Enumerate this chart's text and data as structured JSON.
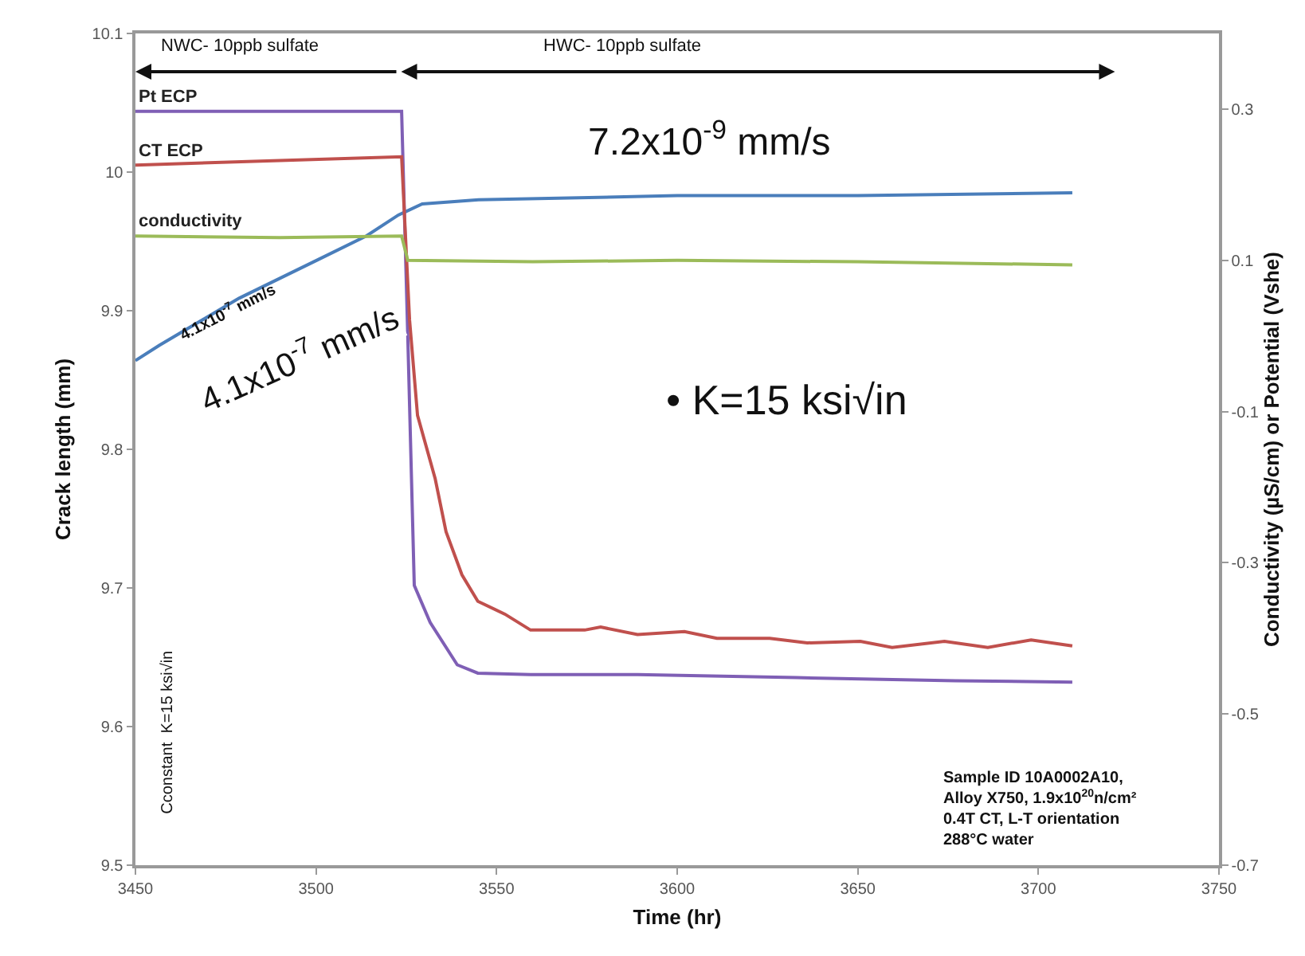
{
  "chart_data": {
    "type": "line",
    "xlabel": "Time (hr)",
    "ylabel": "Crack length (mm)",
    "y2label": "Conductivity (µS/cm) or Potential (Vshe)",
    "xlim": [
      3450,
      3750
    ],
    "xticks": [
      3450,
      3500,
      3550,
      3600,
      3650,
      3700,
      3750
    ],
    "ylim": [
      9.5,
      10.1
    ],
    "yticks": [
      9.5,
      9.6,
      9.7,
      9.8,
      9.9,
      10,
      10.1
    ],
    "y2lim": [
      -0.7,
      0.4
    ],
    "y2ticks": [
      -0.7,
      -0.5,
      -0.3,
      -0.1,
      0.1,
      0.3
    ],
    "legend": false,
    "marker": "none",
    "line_style": "solid",
    "series": [
      {
        "name": "Pt ECP",
        "color": "#7f5fb5",
        "axis": "y2",
        "x": [
          3450,
          3490,
          3523.7,
          3525.4,
          3527.2,
          3531.6,
          3539.1,
          3544.8,
          3559.4,
          3589,
          3633,
          3677,
          3709.4
        ],
        "values": [
          0.297,
          0.297,
          0.297,
          0.0,
          -0.33,
          -0.379,
          -0.435,
          -0.446,
          -0.448,
          -0.448,
          -0.452,
          -0.456,
          -0.458
        ]
      },
      {
        "name": "CT ECP",
        "color": "#c0504d",
        "axis": "y2",
        "x": [
          3450,
          3490,
          3523.7,
          3525.9,
          3528.1,
          3533,
          3536,
          3540.4,
          3544.8,
          3552.3,
          3559.4,
          3574.4,
          3578.8,
          3589,
          3602,
          3611,
          3625.6,
          3636,
          3650.7,
          3659.5,
          3674,
          3686,
          3698,
          3709.4
        ],
        "values": [
          0.226,
          0.232,
          0.237,
          0.021,
          -0.105,
          -0.189,
          -0.259,
          -0.316,
          -0.351,
          -0.368,
          -0.389,
          -0.389,
          -0.385,
          -0.395,
          -0.391,
          -0.4,
          -0.4,
          -0.406,
          -0.404,
          -0.412,
          -0.404,
          -0.412,
          -0.402,
          -0.41
        ]
      },
      {
        "name": "conductivity",
        "color": "#9bbb59",
        "axis": "y2",
        "x": [
          3450,
          3490,
          3523.7,
          3525.4,
          3560,
          3600,
          3650,
          3709.4
        ],
        "values": [
          0.132,
          0.13,
          0.132,
          0.1,
          0.098,
          0.1,
          0.098,
          0.094
        ]
      },
      {
        "color": "#4a7ebb",
        "x": [
          3450,
          3456.6,
          3478.7,
          3500.7,
          3514,
          3522.8,
          3529.4,
          3545,
          3600,
          3650,
          3709.4
        ],
        "values": [
          9.864,
          9.875,
          9.909,
          9.937,
          9.954,
          9.969,
          9.977,
          9.98,
          9.983,
          9.983,
          9.985
        ]
      }
    ],
    "annotations": [
      "NWC- 10ppb sulfate",
      "HWC- 10ppb sulfate",
      "4.1x10$^{-7}$ mm/s",
      "4.1x10$^{-7}$ mm/s",
      "7.2x10$^{-9}$ mm/s",
      "• K=15 ksi√in",
      "Cconstant  K=15 ksi√in",
      "Sample ID 10A0002A10,\nAlloy X750, 1.9x10$^{20}$n/cm²\n0.4T CT, L-T orientation\n288°C water"
    ]
  }
}
